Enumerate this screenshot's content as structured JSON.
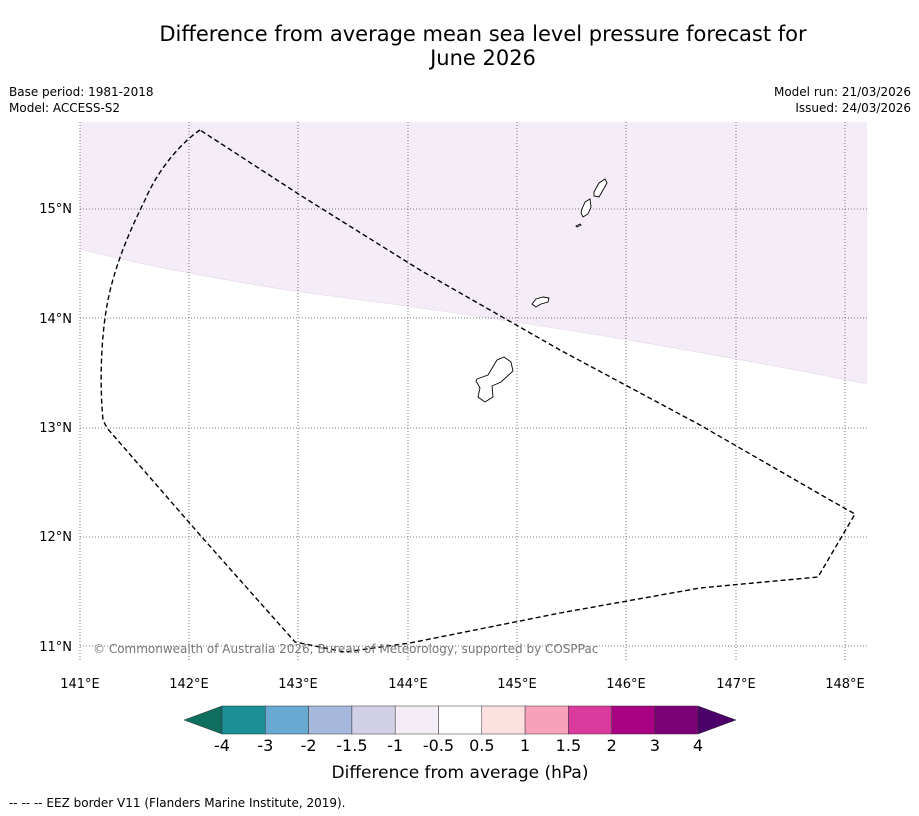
{
  "title_line1": "Difference from average mean sea level pressure forecast for",
  "title_line2": "June 2026",
  "meta": {
    "base_period": "Base period: 1981-2018",
    "model": "Model: ACCESS-S2",
    "model_run": "Model run: 21/03/2026",
    "issued": "Issued: 24/03/2026"
  },
  "map": {
    "lat_labels": [
      "15°N",
      "14°N",
      "13°N",
      "12°N",
      "11°N"
    ],
    "lon_labels": [
      "141°E",
      "142°E",
      "143°E",
      "144°E",
      "145°E",
      "146°E",
      "147°E",
      "148°E"
    ],
    "copyright": "© Commonwealth of Australia 2026, Bureau of Meteorology, supported by COSPPac",
    "shaded_category": "-0.5 to -1 hPa",
    "shade_color": "#f4ecf6"
  },
  "legend": {
    "title": "Difference from average (hPa)",
    "tick_labels": [
      "-4",
      "-3",
      "-2",
      "-1.5",
      "-1",
      "-0.5",
      "0.5",
      "1",
      "1.5",
      "2",
      "3",
      "4"
    ],
    "colors": [
      "#0f6e60",
      "#1a9096",
      "#68a9d2",
      "#a6b8db",
      "#d1d0e6",
      "#f4ecf6",
      "#ffffff",
      "#fde0e0",
      "#f7a1bb",
      "#db3a9d",
      "#aa0182",
      "#7b0177",
      "#4c006a"
    ]
  },
  "footnote": "--  --  -- EEZ border V11 (Flanders Marine Institute, 2019)."
}
